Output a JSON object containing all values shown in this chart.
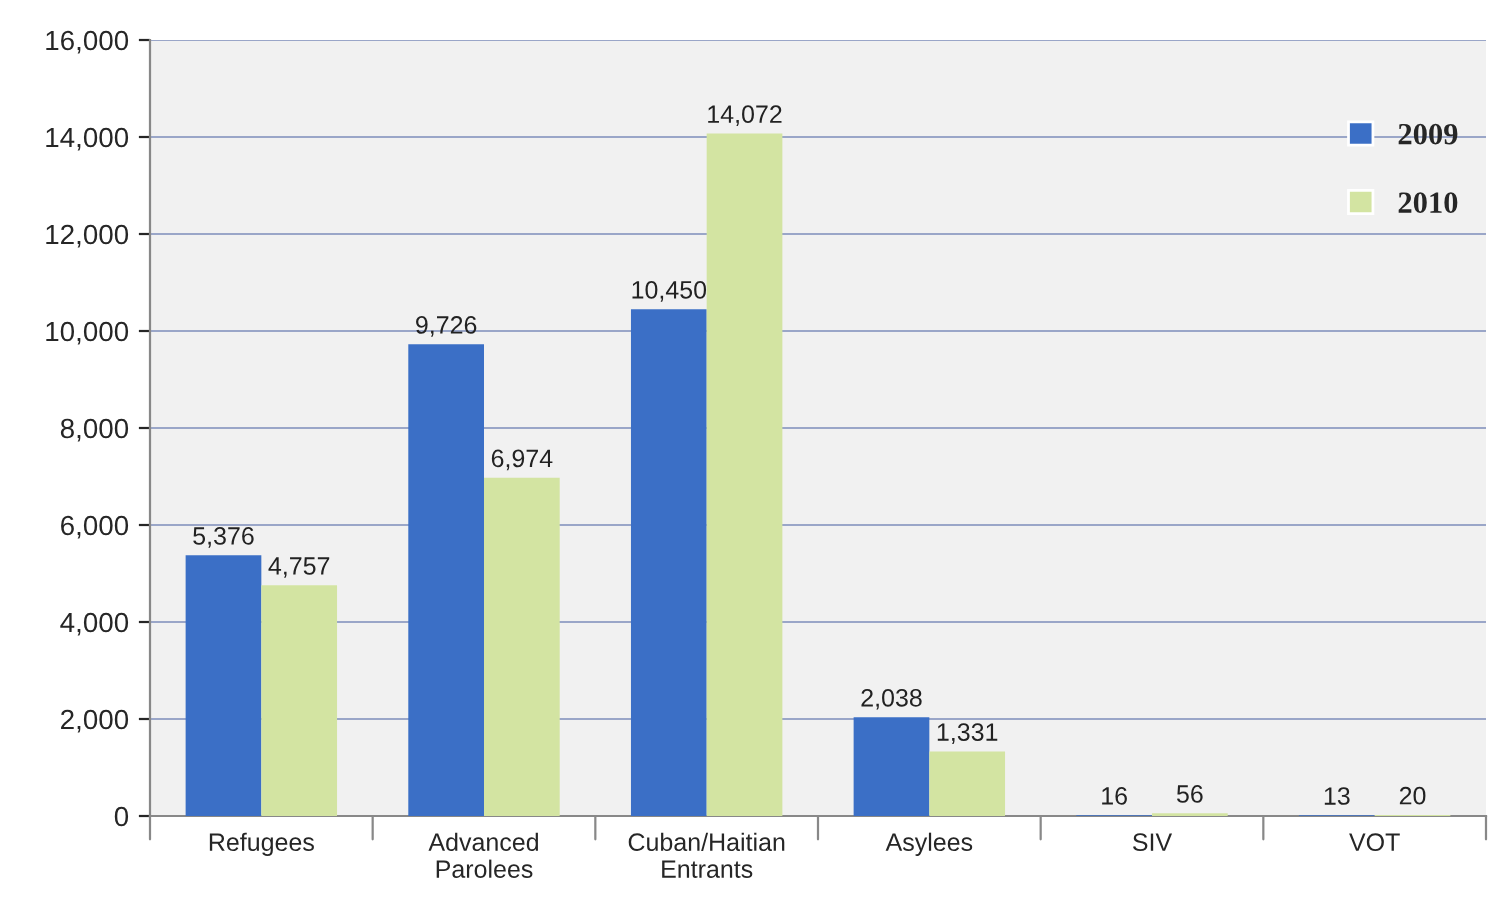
{
  "chart_data": {
    "type": "bar",
    "categories": [
      "Refugees",
      "Advanced\nParolees",
      "Cuban/Haitian\nEntrants",
      "Asylees",
      "SIV",
      "VOT"
    ],
    "series": [
      {
        "name": "2009",
        "color": "#3b6fc6",
        "values": [
          5376,
          9726,
          10450,
          2038,
          16,
          13
        ],
        "value_labels": [
          "5,376",
          "9,726",
          "10,450",
          "2,038",
          "16",
          "13"
        ]
      },
      {
        "name": "2010",
        "color": "#d3e4a2",
        "values": [
          4757,
          6974,
          14072,
          1331,
          56,
          20
        ],
        "value_labels": [
          "4,757",
          "6,974",
          "14,072",
          "1,331",
          "56",
          "20"
        ]
      }
    ],
    "ylim": [
      0,
      16000
    ],
    "yticks": [
      {
        "value": 0,
        "label": "0"
      },
      {
        "value": 2000,
        "label": "2,000"
      },
      {
        "value": 4000,
        "label": "4,000"
      },
      {
        "value": 6000,
        "label": "6,000"
      },
      {
        "value": 8000,
        "label": "8,000"
      },
      {
        "value": 10000,
        "label": "10,000"
      },
      {
        "value": 12000,
        "label": "12,000"
      },
      {
        "value": 14000,
        "label": "14,000"
      },
      {
        "value": 16000,
        "label": "16,000"
      }
    ],
    "grid": "y",
    "legend": "top right"
  }
}
